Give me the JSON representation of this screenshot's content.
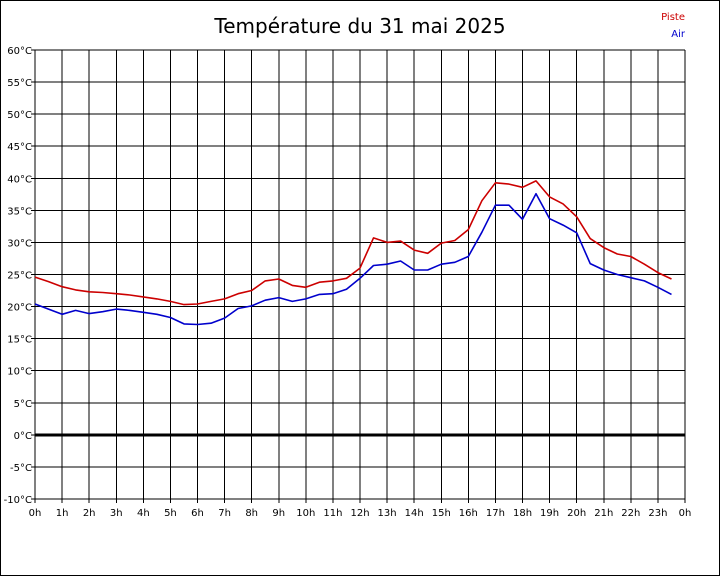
{
  "chart_data": {
    "type": "line",
    "title": "Température du 31 mai 2025",
    "xlabel": "",
    "ylabel": "",
    "x_tick_labels": [
      "0h",
      "1h",
      "2h",
      "3h",
      "4h",
      "5h",
      "6h",
      "7h",
      "8h",
      "9h",
      "10h",
      "11h",
      "12h",
      "13h",
      "14h",
      "15h",
      "16h",
      "17h",
      "18h",
      "19h",
      "20h",
      "21h",
      "22h",
      "23h",
      "0h"
    ],
    "y_tick_labels": [
      "60°C",
      "55°C",
      "50°C",
      "45°C",
      "40°C",
      "35°C",
      "30°C",
      "25°C",
      "20°C",
      "15°C",
      "10°C",
      "5°C",
      "0°C",
      "-5°C",
      "-10°C"
    ],
    "xlim": [
      0,
      24
    ],
    "ylim": [
      -10,
      60
    ],
    "grid": true,
    "legend_position": "top-right",
    "zero_line": true,
    "series": [
      {
        "name": "Piste",
        "color": "#cc0000",
        "x": [
          0,
          0.5,
          1,
          1.5,
          2,
          2.5,
          3,
          3.5,
          4,
          4.5,
          5,
          5.5,
          6,
          6.5,
          7,
          7.5,
          8,
          8.5,
          9,
          9.5,
          10,
          10.5,
          11,
          11.5,
          12,
          12.5,
          13,
          13.5,
          14,
          14.5,
          15,
          15.5,
          16,
          16.5,
          17,
          17.5,
          18,
          18.5,
          19,
          19.5,
          20,
          20.5,
          21,
          21.5,
          22,
          22.5,
          23,
          23.5
        ],
        "y": [
          24.6,
          23.9,
          23.1,
          22.6,
          22.3,
          22.2,
          22.0,
          21.8,
          21.5,
          21.2,
          20.8,
          20.3,
          20.4,
          20.8,
          21.2,
          22.0,
          22.5,
          24.0,
          24.3,
          23.3,
          23.0,
          23.8,
          24.0,
          24.4,
          26.0,
          30.7,
          30.0,
          30.2,
          28.8,
          28.3,
          29.9,
          30.3,
          32.0,
          36.5,
          39.3,
          39.1,
          38.6,
          39.6,
          37.1,
          36.0,
          34.0,
          30.6,
          29.2,
          28.2,
          27.8,
          26.6,
          25.3,
          24.3
        ]
      },
      {
        "name": "Air",
        "color": "#0000cc",
        "x": [
          0,
          0.5,
          1,
          1.5,
          2,
          2.5,
          3,
          3.5,
          4,
          4.5,
          5,
          5.5,
          6,
          6.5,
          7,
          7.5,
          8,
          8.5,
          9,
          9.5,
          10,
          10.5,
          11,
          11.5,
          12,
          12.5,
          13,
          13.5,
          14,
          14.5,
          15,
          15.5,
          16,
          16.5,
          17,
          17.5,
          18,
          18.5,
          19,
          19.5,
          20,
          20.5,
          21,
          21.5,
          22,
          22.5,
          23,
          23.5
        ],
        "y": [
          20.4,
          19.6,
          18.8,
          19.4,
          18.9,
          19.2,
          19.6,
          19.4,
          19.1,
          18.8,
          18.3,
          17.3,
          17.2,
          17.4,
          18.2,
          19.7,
          20.1,
          21.0,
          21.4,
          20.8,
          21.2,
          21.9,
          22.0,
          22.7,
          24.4,
          26.4,
          26.6,
          27.1,
          25.7,
          25.7,
          26.6,
          26.9,
          27.8,
          31.6,
          35.8,
          35.8,
          33.6,
          37.6,
          33.7,
          32.7,
          31.5,
          26.7,
          25.7,
          25.0,
          24.5,
          24.0,
          23.0,
          21.9
        ]
      }
    ]
  }
}
